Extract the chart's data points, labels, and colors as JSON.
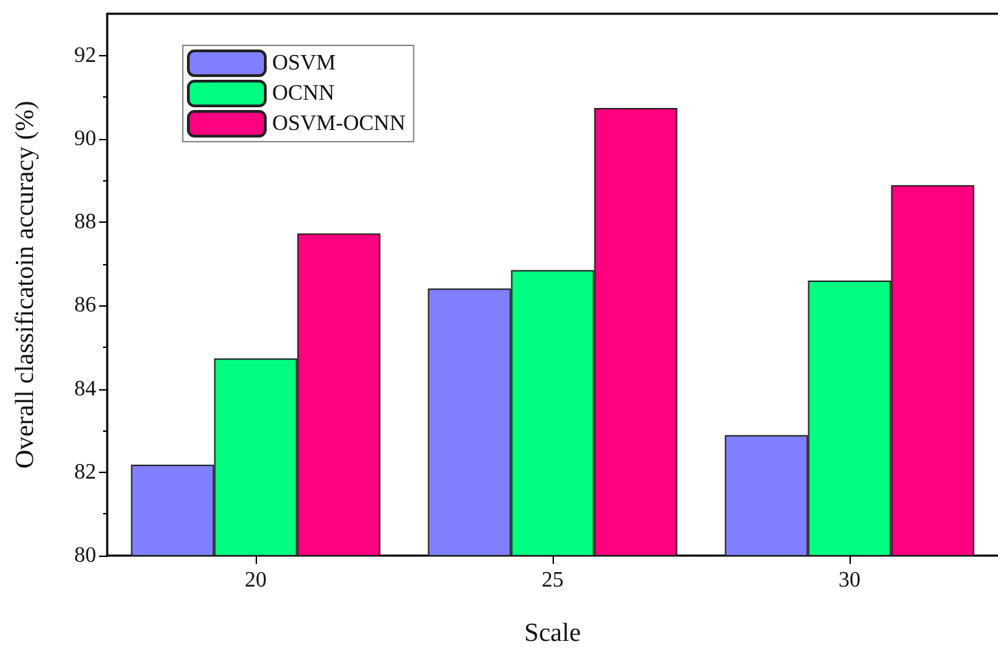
{
  "chart_data": {
    "type": "bar",
    "xlabel": "Scale",
    "ylabel": "Overall classificatoin accuracy (%)",
    "categories": [
      "20",
      "25",
      "30"
    ],
    "series": [
      {
        "name": "OSVM",
        "color": "#8080ff",
        "values": [
          82.18,
          86.41,
          82.89
        ]
      },
      {
        "name": "OCNN",
        "color": "#00ff80",
        "values": [
          84.73,
          86.85,
          86.6
        ]
      },
      {
        "name": "OSVM-OCNN",
        "color": "#ff0080",
        "values": [
          87.73,
          90.74,
          88.89
        ]
      }
    ],
    "ylim": [
      80,
      93
    ],
    "yticks": [
      80,
      82,
      84,
      86,
      88,
      90,
      92
    ],
    "grid": false,
    "legend": "top left"
  }
}
